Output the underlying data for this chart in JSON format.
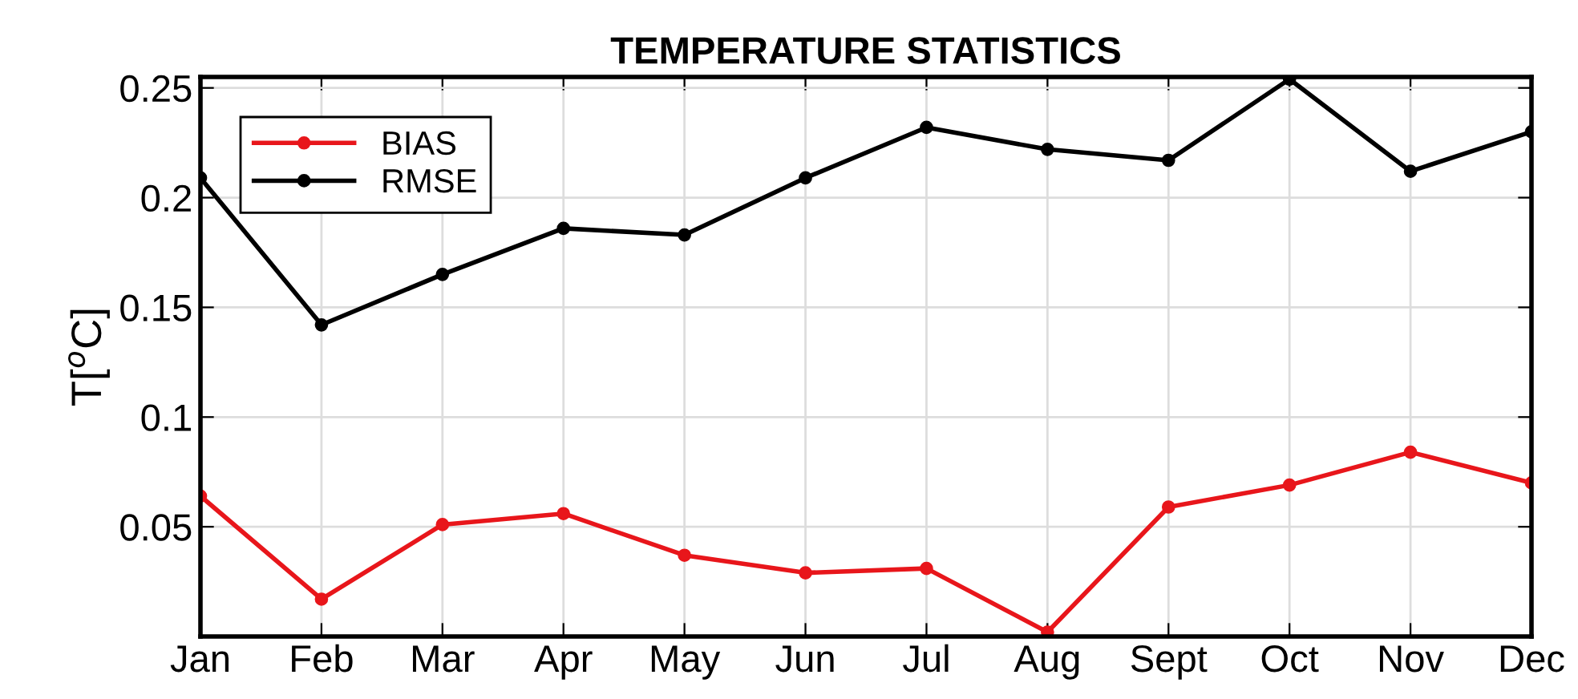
{
  "chart_data": {
    "type": "line",
    "title": "TEMPERATURE STATISTICS",
    "ylabel": "T[$^{o}$C]",
    "categories": [
      "Jan",
      "Feb",
      "Mar",
      "Apr",
      "May",
      "Jun",
      "Jul",
      "Aug",
      "Sept",
      "Oct",
      "Nov",
      "Dec"
    ],
    "series": [
      {
        "name": "BIAS",
        "color": "#e8161b",
        "values": [
          0.064,
          0.017,
          0.051,
          0.056,
          0.037,
          0.029,
          0.031,
          0.002,
          0.059,
          0.069,
          0.084,
          0.07
        ]
      },
      {
        "name": "RMSE",
        "color": "#000000",
        "values": [
          0.209,
          0.142,
          0.165,
          0.186,
          0.183,
          0.209,
          0.232,
          0.222,
          0.217,
          0.254,
          0.212,
          0.23
        ]
      }
    ],
    "ylim": [
      0,
      0.255
    ],
    "yticks": [
      0.05,
      0.1,
      0.15,
      0.2,
      0.25
    ],
    "grid": true,
    "legend": "top left",
    "marker": "circle",
    "line_style": "solid"
  }
}
